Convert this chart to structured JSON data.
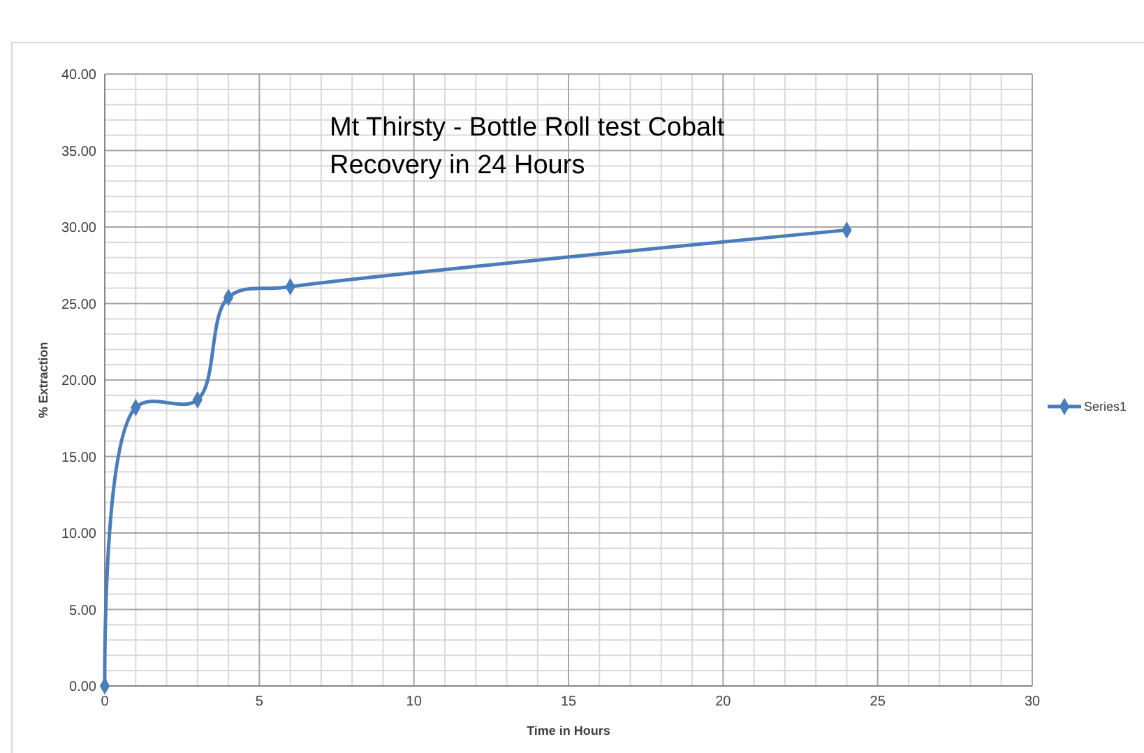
{
  "chart_data": {
    "type": "line",
    "title": "Mt Thirsty - Bottle Roll test Cobalt Recovery in 24 Hours",
    "xlabel": "Time in Hours",
    "ylabel": "% Extraction",
    "x": [
      0,
      1,
      3,
      4,
      6,
      24
    ],
    "series": [
      {
        "name": "Series1",
        "color": "#4a7ebb",
        "values": [
          0,
          18.2,
          18.7,
          25.4,
          26.1,
          29.8
        ]
      }
    ],
    "xlim": [
      0,
      30
    ],
    "xticks": [
      0,
      5,
      10,
      15,
      20,
      25,
      30
    ],
    "ylim": [
      0,
      40
    ],
    "yticks": [
      {
        "value": 0,
        "label": "0.00"
      },
      {
        "value": 5,
        "label": "5.00"
      },
      {
        "value": 10,
        "label": "10.00"
      },
      {
        "value": 15,
        "label": "15.00"
      },
      {
        "value": 20,
        "label": "20.00"
      },
      {
        "value": 25,
        "label": "25.00"
      },
      {
        "value": 30,
        "label": "30.00"
      },
      {
        "value": 35,
        "label": "35.00"
      },
      {
        "value": 40,
        "label": "40.00"
      }
    ],
    "grid": true,
    "legend": "right",
    "marker": "diamond",
    "line_style": "solid"
  }
}
